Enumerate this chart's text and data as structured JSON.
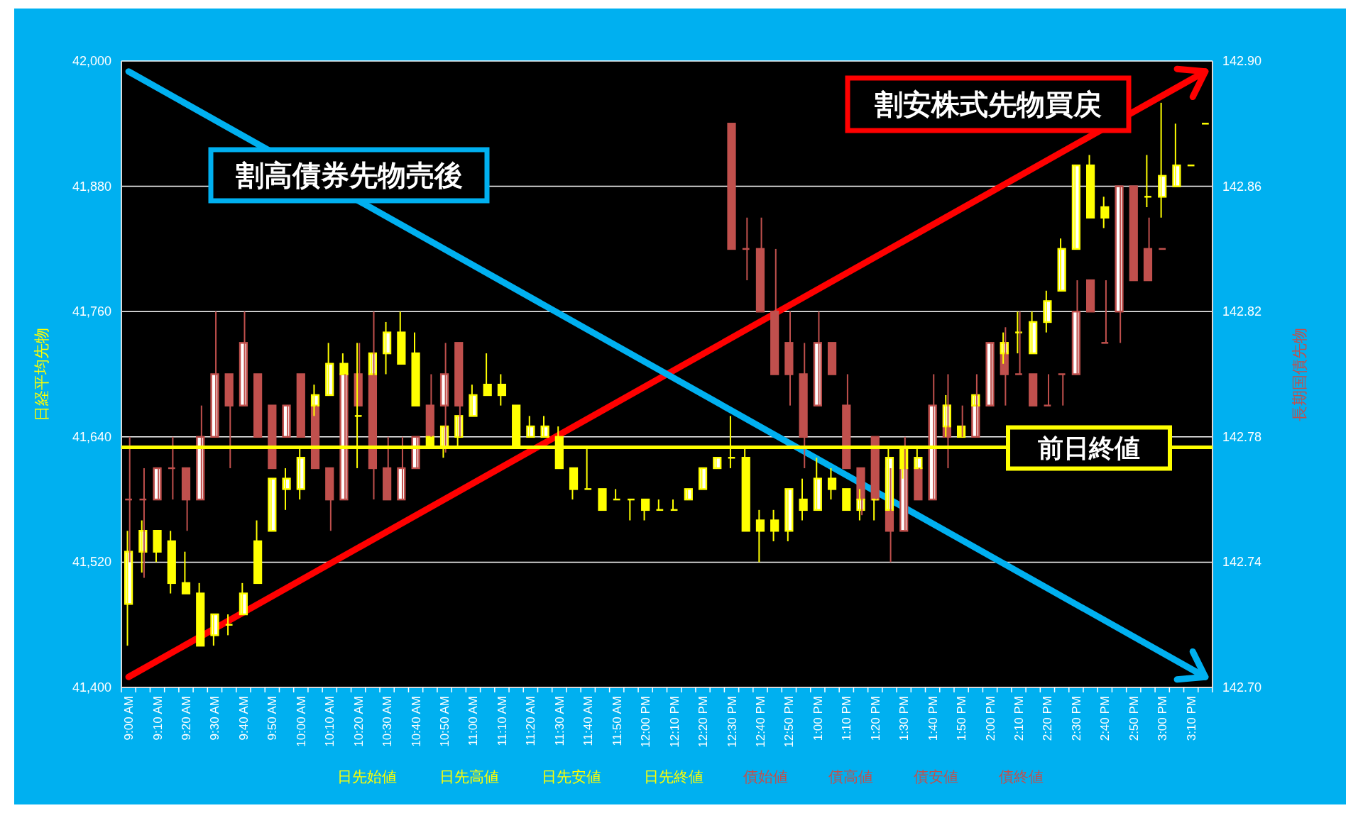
{
  "chart_data": {
    "type": "candlestick",
    "categories": [
      "9:00 AM",
      null,
      "9:10 AM",
      null,
      "9:20 AM",
      null,
      "9:30 AM",
      null,
      "9:40 AM",
      null,
      "9:50 AM",
      null,
      "10:00 AM",
      null,
      "10:10 AM",
      null,
      "10:20 AM",
      null,
      "10:30 AM",
      null,
      "10:40 AM",
      null,
      "10:50 AM",
      null,
      "11:00 AM",
      null,
      "11:10 AM",
      null,
      "11:20 AM",
      null,
      "11:30 AM",
      null,
      "11:40 AM",
      null,
      "11:50 AM",
      null,
      "12:00 PM",
      null,
      "12:10 PM",
      null,
      "12:20 PM",
      null,
      "12:30 PM",
      null,
      "12:40 PM",
      null,
      "12:50 PM",
      null,
      "1:00 PM",
      null,
      "1:10 PM",
      null,
      "1:20 PM",
      null,
      "1:30 PM",
      null,
      "1:40 PM",
      null,
      "1:50 PM",
      null,
      "2:00 PM",
      null,
      "2:10 PM",
      null,
      "2:20 PM",
      null,
      "2:30 PM",
      null,
      "2:40 PM",
      null,
      "2:50 PM",
      null,
      "3:00 PM",
      null,
      "3:10 PM",
      null
    ],
    "series": [
      {
        "color": "#ffff00",
        "ohlc": [
          [
            41480,
            41550,
            41440,
            41530
          ],
          [
            41530,
            41560,
            41510,
            41550
          ],
          [
            41550,
            41550,
            41520,
            41530
          ],
          [
            41540,
            41550,
            41490,
            41500
          ],
          [
            41500,
            41530,
            41490,
            41490
          ],
          [
            41490,
            41500,
            41440,
            41440
          ],
          [
            41450,
            41470,
            41440,
            41470
          ],
          [
            41460,
            41470,
            41450,
            41460
          ],
          [
            41470,
            41500,
            41470,
            41490
          ],
          [
            41540,
            41560,
            41500,
            41500
          ],
          [
            41550,
            41600,
            41550,
            41600
          ],
          [
            41590,
            41610,
            41570,
            41600
          ],
          [
            41590,
            41630,
            41580,
            41620
          ],
          [
            41670,
            41690,
            41660,
            41680
          ],
          [
            41680,
            41730,
            41680,
            41710
          ],
          [
            41710,
            41720,
            41700,
            41700
          ],
          [
            41660,
            41730,
            41610,
            41660
          ],
          [
            41700,
            41720,
            41700,
            41720
          ],
          [
            41720,
            41750,
            41700,
            41740
          ],
          [
            41740,
            41760,
            41710,
            41710
          ],
          [
            41720,
            41740,
            41670,
            41670
          ],
          [
            41640,
            41640,
            41630,
            41630
          ],
          [
            41630,
            41650,
            41620,
            41650
          ],
          [
            41640,
            41660,
            41630,
            41660
          ],
          [
            41660,
            41690,
            41660,
            41680
          ],
          [
            41690,
            41720,
            41680,
            41680
          ],
          [
            41690,
            41700,
            41670,
            41680
          ],
          [
            41670,
            41670,
            41630,
            41630
          ],
          [
            41640,
            41660,
            41640,
            41650
          ],
          [
            41640,
            41660,
            41640,
            41650
          ],
          [
            41640,
            41650,
            41610,
            41610
          ],
          [
            41610,
            41610,
            41580,
            41590
          ],
          [
            41590,
            41630,
            41590,
            41590
          ],
          [
            41590,
            41590,
            41570,
            41570
          ],
          [
            41580,
            41590,
            41580,
            41580
          ],
          [
            41580,
            41580,
            41560,
            41580
          ],
          [
            41580,
            41580,
            41560,
            41570
          ],
          [
            41570,
            41580,
            41570,
            41570
          ],
          [
            41570,
            41580,
            41570,
            41570
          ],
          [
            41580,
            41590,
            41580,
            41590
          ],
          [
            41590,
            41610,
            41590,
            41610
          ],
          [
            41610,
            41620,
            41610,
            41620
          ],
          [
            41620,
            41660,
            41610,
            41620
          ],
          [
            41620,
            41630,
            41550,
            41550
          ],
          [
            41560,
            41570,
            41520,
            41550
          ],
          [
            41560,
            41570,
            41540,
            41550
          ],
          [
            41550,
            41590,
            41540,
            41590
          ],
          [
            41580,
            41600,
            41560,
            41570
          ],
          [
            41570,
            41620,
            41570,
            41600
          ],
          [
            41600,
            41610,
            41580,
            41590
          ],
          [
            41590,
            41590,
            41570,
            41570
          ],
          [
            41570,
            41590,
            41560,
            41580
          ],
          [
            41580,
            41580,
            41560,
            41580
          ],
          [
            41570,
            41630,
            41570,
            41620
          ],
          [
            41630,
            41630,
            41600,
            41610
          ],
          [
            41610,
            41630,
            41610,
            41620
          ],
          null,
          [
            41650,
            41680,
            41640,
            41670
          ],
          [
            41650,
            41650,
            41640,
            41640
          ],
          [
            41670,
            41680,
            41670,
            41680
          ],
          null,
          [
            41720,
            41740,
            41710,
            41730
          ],
          [
            41740,
            41760,
            41720,
            41740
          ],
          [
            41720,
            41760,
            41720,
            41750
          ],
          [
            41750,
            41780,
            41740,
            41770
          ],
          [
            41780,
            41830,
            41780,
            41820
          ],
          [
            41820,
            41900,
            41820,
            41900
          ],
          [
            41900,
            41910,
            41850,
            41850
          ],
          [
            41860,
            41870,
            41840,
            41850
          ],
          null,
          null,
          [
            41870,
            41910,
            41860,
            41870
          ],
          [
            41870,
            41960,
            41850,
            41890
          ],
          [
            41880,
            41940,
            41880,
            41900
          ],
          [
            41900,
            41900,
            41900,
            41900
          ],
          [
            41940,
            41940,
            41940,
            41940
          ]
        ]
      },
      {
        "color": "#c0504d",
        "axis": "y2",
        "ohlc": [
          [
            142.76,
            142.78,
            142.74,
            142.76
          ],
          [
            142.76,
            142.77,
            142.735,
            142.76
          ],
          [
            142.76,
            142.77,
            142.76,
            142.77
          ],
          [
            142.77,
            142.78,
            142.76,
            142.77
          ],
          [
            142.77,
            142.77,
            142.75,
            142.76
          ],
          [
            142.76,
            142.79,
            142.76,
            142.78
          ],
          [
            142.78,
            142.82,
            142.78,
            142.8
          ],
          [
            142.8,
            142.8,
            142.77,
            142.79
          ],
          [
            142.79,
            142.82,
            142.79,
            142.81
          ],
          [
            142.8,
            142.8,
            142.78,
            142.78
          ],
          [
            142.79,
            142.79,
            142.77,
            142.77
          ],
          [
            142.78,
            142.79,
            142.78,
            142.79
          ],
          [
            142.8,
            142.8,
            142.78,
            142.78
          ],
          [
            142.79,
            142.79,
            142.77,
            142.77
          ],
          [
            142.77,
            142.77,
            142.75,
            142.76
          ],
          [
            142.76,
            142.8,
            142.76,
            142.8
          ],
          [
            142.8,
            142.81,
            142.79,
            142.79
          ],
          [
            142.8,
            142.82,
            142.76,
            142.77
          ],
          [
            142.77,
            142.78,
            142.76,
            142.76
          ],
          [
            142.76,
            142.78,
            142.76,
            142.77
          ],
          [
            142.77,
            142.78,
            142.77,
            142.78
          ],
          [
            142.79,
            142.8,
            142.78,
            142.78
          ],
          [
            142.79,
            142.81,
            142.775,
            142.8
          ],
          [
            142.81,
            142.81,
            142.78,
            142.79
          ],
          null,
          null,
          null,
          null,
          null,
          null,
          null,
          null,
          null,
          null,
          null,
          null,
          null,
          null,
          null,
          null,
          null,
          null,
          [
            142.88,
            142.88,
            142.84,
            142.84
          ],
          [
            142.84,
            142.85,
            142.83,
            142.84
          ],
          [
            142.84,
            142.85,
            142.82,
            142.82
          ],
          [
            142.82,
            142.84,
            142.8,
            142.8
          ],
          [
            142.81,
            142.82,
            142.79,
            142.8
          ],
          [
            142.8,
            142.81,
            142.77,
            142.78
          ],
          [
            142.79,
            142.82,
            142.79,
            142.81
          ],
          [
            142.81,
            142.81,
            142.8,
            142.8
          ],
          [
            142.79,
            142.8,
            142.77,
            142.77
          ],
          [
            142.77,
            142.77,
            142.755,
            142.76
          ],
          [
            142.78,
            142.78,
            142.76,
            142.76
          ],
          [
            142.77,
            142.77,
            142.74,
            142.75
          ],
          [
            142.75,
            142.78,
            142.75,
            142.77
          ],
          [
            142.77,
            142.77,
            142.76,
            142.76
          ],
          [
            142.76,
            142.8,
            142.76,
            142.79
          ],
          [
            142.79,
            142.8,
            142.77,
            142.78
          ],
          [
            142.78,
            142.79,
            142.78,
            142.78
          ],
          [
            142.78,
            142.8,
            142.78,
            142.79
          ],
          [
            142.79,
            142.81,
            142.79,
            142.81
          ],
          [
            142.81,
            142.815,
            142.79,
            142.8
          ],
          [
            142.8,
            142.82,
            142.8,
            142.8
          ],
          [
            142.8,
            142.8,
            142.79,
            142.79
          ],
          [
            142.79,
            142.8,
            142.79,
            142.79
          ],
          [
            142.8,
            142.8,
            142.79,
            142.8
          ],
          [
            142.8,
            142.83,
            142.8,
            142.82
          ],
          [
            142.83,
            142.83,
            142.82,
            142.82
          ],
          [
            142.81,
            142.83,
            142.81,
            142.81
          ],
          [
            142.82,
            142.86,
            142.81,
            142.86
          ],
          [
            142.86,
            142.86,
            142.83,
            142.83
          ],
          [
            142.84,
            142.85,
            142.83,
            142.83
          ],
          [
            142.84,
            142.84,
            142.84,
            142.84
          ],
          null,
          null,
          null
        ]
      },
      {
        "type": "line",
        "color": "#00b0f0",
        "values": [
          41990,
          null,
          null,
          null,
          null,
          null,
          null,
          null,
          null,
          null,
          null,
          null,
          null,
          null,
          null,
          null,
          null,
          null,
          null,
          null,
          null,
          null,
          null,
          null,
          null,
          null,
          null,
          null,
          null,
          null,
          null,
          null,
          null,
          null,
          null,
          null,
          null,
          null,
          null,
          null,
          null,
          null,
          null,
          null,
          null,
          null,
          null,
          null,
          null,
          null,
          null,
          null,
          null,
          null,
          null,
          null,
          null,
          null,
          null,
          null,
          null,
          null,
          null,
          null,
          null,
          null,
          null,
          null,
          null,
          null,
          null,
          null,
          null,
          null,
          null,
          41410
        ]
      },
      {
        "type": "line",
        "color": "#ff0000",
        "values": [
          41410,
          null,
          null,
          null,
          null,
          null,
          null,
          null,
          null,
          null,
          null,
          null,
          null,
          null,
          null,
          null,
          null,
          null,
          null,
          null,
          null,
          null,
          null,
          null,
          null,
          null,
          null,
          null,
          null,
          null,
          null,
          null,
          null,
          null,
          null,
          null,
          null,
          null,
          null,
          null,
          null,
          null,
          null,
          null,
          null,
          null,
          null,
          null,
          null,
          null,
          null,
          null,
          null,
          null,
          null,
          null,
          null,
          null,
          null,
          null,
          null,
          null,
          null,
          null,
          null,
          null,
          null,
          null,
          null,
          null,
          null,
          null,
          null,
          null,
          null,
          41990
        ]
      }
    ],
    "ylabel": "日経平均先物",
    "y2label": "長期国債先物",
    "ylim": [
      41400,
      42000
    ],
    "yticks": [
      {
        "value": 41400,
        "label": "41,400"
      },
      {
        "value": 41520,
        "label": "41,520"
      },
      {
        "value": 41640,
        "label": "41,640"
      },
      {
        "value": 41760,
        "label": "41,760"
      },
      {
        "value": 41880,
        "label": "41,880"
      },
      {
        "value": 42000,
        "label": "42,000"
      }
    ],
    "y2lim": [
      142.7,
      142.9
    ],
    "y2ticks": [
      {
        "value": 142.7,
        "label": "142.70"
      },
      {
        "value": 142.74,
        "label": "142.74"
      },
      {
        "value": 142.78,
        "label": "142.78"
      },
      {
        "value": 142.82,
        "label": "142.82"
      },
      {
        "value": 142.86,
        "label": "142.86"
      },
      {
        "value": 142.9,
        "label": "142.90"
      }
    ],
    "grid": "y",
    "ref_lines": [
      {
        "axis": "y",
        "value": 41630,
        "label": "前日終値",
        "color": "#ffff00"
      }
    ],
    "annotations": [
      "割高債券先物売後",
      "割安株式先物買戻",
      "日先始値",
      "日先高値",
      "日先安値",
      "日先終値",
      "債始値",
      "債高値",
      "債安値",
      "債終値"
    ]
  }
}
